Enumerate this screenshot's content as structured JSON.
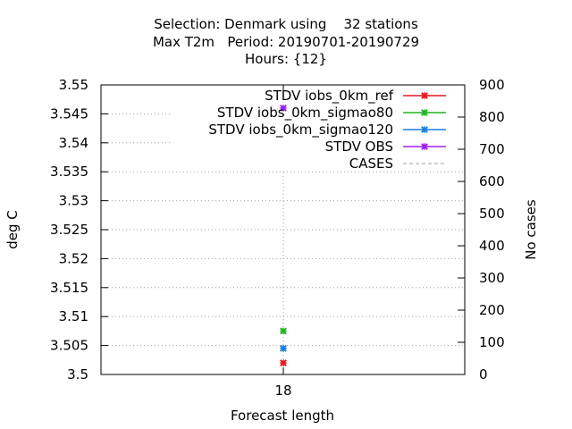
{
  "chart_data": {
    "type": "scatter",
    "title_lines": [
      "Selection: Denmark using    32 stations",
      "Max T2m   Period: 20190701-20190729",
      "Hours: {12}"
    ],
    "xlabel": "Forecast length",
    "ylabel": "deg C",
    "y2label": "No cases",
    "categories": [
      "18"
    ],
    "ylim": [
      3.5,
      3.55
    ],
    "yticks": [
      "3.5",
      "3.505",
      "3.51",
      "3.515",
      "3.52",
      "3.525",
      "3.53",
      "3.535",
      "3.54",
      "3.545",
      "3.55"
    ],
    "y2lim": [
      0,
      900
    ],
    "y2ticks": [
      "0",
      "100",
      "200",
      "300",
      "400",
      "500",
      "600",
      "700",
      "800",
      "900"
    ],
    "grid": true,
    "legend_position": "top-right",
    "series": [
      {
        "name": "STDV iobs_0km_ref",
        "color": "#e41a1c",
        "values": [
          3.502
        ],
        "axis": "y"
      },
      {
        "name": "STDV iobs_0km_sigmao80",
        "color": "#1fb51f",
        "values": [
          3.5075
        ],
        "axis": "y"
      },
      {
        "name": "STDV iobs_0km_sigmao120",
        "color": "#1a7fe6",
        "values": [
          3.5045
        ],
        "axis": "y"
      },
      {
        "name": "STDV OBS",
        "color": "#a020f0",
        "values": [
          3.546
        ],
        "axis": "y"
      },
      {
        "name": "CASES",
        "color": "#a0a0a0",
        "values": [
          32
        ],
        "axis": "y2",
        "dashed": true
      }
    ]
  }
}
